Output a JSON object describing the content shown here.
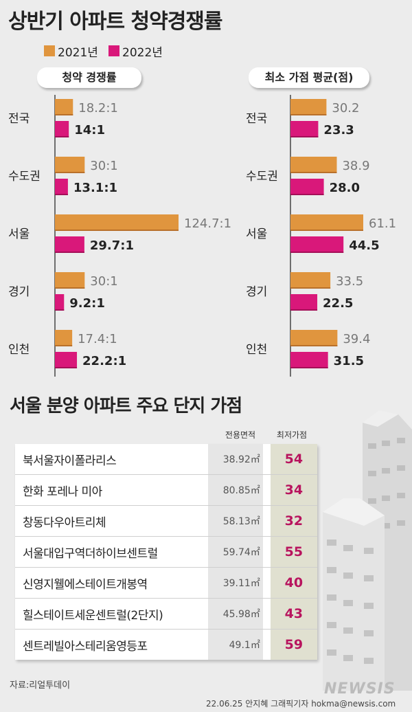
{
  "title": "상반기 아파트 청약경쟁률",
  "legend": [
    {
      "label": "2021년",
      "color": "#e0953e"
    },
    {
      "label": "2022년",
      "color": "#d9187a"
    }
  ],
  "chart_data": [
    {
      "type": "bar",
      "title": "청약 경쟁률",
      "categories": [
        "전국",
        "수도권",
        "서울",
        "경기",
        "인천"
      ],
      "series": [
        {
          "name": "2021년",
          "values": [
            18.2,
            30,
            124.7,
            30,
            17.4
          ],
          "labels": [
            "18.2:1",
            "30:1",
            "124.7:1",
            "30:1",
            "17.4:1"
          ]
        },
        {
          "name": "2022년",
          "values": [
            14,
            13.1,
            29.7,
            9.2,
            22.2
          ],
          "labels": [
            "14:1",
            "13.1:1",
            "29.7:1",
            "9.2:1",
            "22.2:1"
          ]
        }
      ],
      "xlim": [
        0,
        124.7
      ]
    },
    {
      "type": "bar",
      "title": "최소 가점 평균(점)",
      "categories": [
        "전국",
        "수도권",
        "서울",
        "경기",
        "인천"
      ],
      "series": [
        {
          "name": "2021년",
          "values": [
            30.2,
            38.9,
            61.1,
            33.5,
            39.4
          ],
          "labels": [
            "30.2",
            "38.9",
            "61.1",
            "33.5",
            "39.4"
          ]
        },
        {
          "name": "2022년",
          "values": [
            23.3,
            28.0,
            44.5,
            22.5,
            31.5
          ],
          "labels": [
            "23.3",
            "28.0",
            "44.5",
            "22.5",
            "31.5"
          ]
        }
      ],
      "xlim": [
        0,
        61.1
      ]
    }
  ],
  "section2": {
    "title": "서울 분양 아파트 주요 단지 가점",
    "col_area": "전용면적",
    "col_score": "최저가점",
    "rows": [
      {
        "name": "북서울자이폴라리스",
        "area": "38.92㎡",
        "score": "54"
      },
      {
        "name": "한화 포레나 미아",
        "area": "80.85㎡",
        "score": "34"
      },
      {
        "name": "창동다우아트리체",
        "area": "58.13㎡",
        "score": "32"
      },
      {
        "name": "서울대입구역더하이브센트럴",
        "area": "59.74㎡",
        "score": "55"
      },
      {
        "name": "신영지웰에스테이트개봉역",
        "area": "39.11㎡",
        "score": "40"
      },
      {
        "name": "힐스테이트세운센트럴(2단지)",
        "area": "45.98㎡",
        "score": "43"
      },
      {
        "name": "센트레빌아스테리움영등포",
        "area": "49.1㎡",
        "score": "59"
      }
    ]
  },
  "source": "자료:리얼투데이",
  "credit": "22.06.25 안지혜 그래픽기자 hokma@newsis.com",
  "logo": "NEWSIS"
}
